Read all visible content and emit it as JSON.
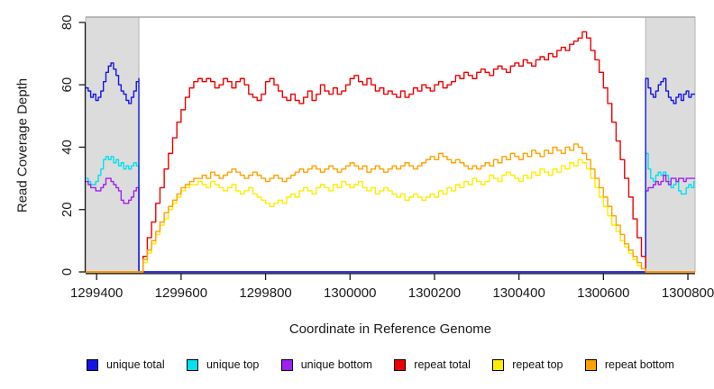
{
  "chart_data": {
    "type": "line",
    "title": "",
    "xlabel": "Coordinate in Reference Genome",
    "ylabel": "Read Coverage Depth",
    "xlim": [
      1299374,
      1300817
    ],
    "ylim": [
      0,
      81.7
    ],
    "x_ticks": [
      1299400,
      1299600,
      1299800,
      1300000,
      1300200,
      1300400,
      1300600,
      1300800
    ],
    "y_ticks": [
      0,
      20,
      40,
      60,
      80
    ],
    "grid": false,
    "legend_position": "bottom",
    "axis_color": "#1a1a1a",
    "plot_border_top_color": "#a6a6a6",
    "shaded_regions": [
      {
        "x0": 1299374,
        "x1": 1299500,
        "fill": "#dcdcdc",
        "stroke": "#b3b3b3"
      },
      {
        "x0": 1300700,
        "x1": 1300817,
        "fill": "#dcdcdc",
        "stroke": "#b3b3b3"
      }
    ],
    "legend": [
      {
        "label": "unique total",
        "color": "#1414e6"
      },
      {
        "label": "unique top",
        "color": "#00e0ee"
      },
      {
        "label": "unique bottom",
        "color": "#a020f0"
      },
      {
        "label": "repeat total",
        "color": "#f00000"
      },
      {
        "label": "repeat top",
        "color": "#ffec00"
      },
      {
        "label": "repeat bottom",
        "color": "#ffa200"
      }
    ],
    "series": [
      {
        "name": "unique-top",
        "legend_label": "unique top",
        "color": "#00e0ee",
        "segments": [
          {
            "x0": 1299374,
            "dx": 6,
            "values": [
              30,
              29,
              28,
              28,
              29,
              31,
              33,
              36,
              37,
              36,
              37,
              35,
              36,
              34,
              35,
              33,
              34,
              33,
              34,
              35,
              34,
              33
            ]
          },
          {
            "x": [
              1299500,
              1300700
            ],
            "values": [
              0,
              0
            ]
          },
          {
            "x0": 1300700,
            "dx": 6,
            "values": [
              38,
              33,
              30,
              29,
              31,
              32,
              31,
              32,
              31,
              29,
              27,
              28,
              29,
              26,
              25,
              25,
              27,
              28,
              27,
              29,
              29
            ]
          }
        ]
      },
      {
        "name": "unique-bottom",
        "legend_label": "unique bottom",
        "color": "#a020f0",
        "segments": [
          {
            "x0": 1299374,
            "dx": 6,
            "values": [
              29,
              28,
              27,
              27,
              26,
              26,
              27,
              28,
              30,
              30,
              29,
              28,
              27,
              26,
              23,
              22,
              22,
              23,
              24,
              26,
              27,
              26
            ]
          },
          {
            "x": [
              1299500,
              1300700
            ],
            "values": [
              0,
              0
            ]
          },
          {
            "x0": 1300700,
            "dx": 6,
            "values": [
              26,
              27,
              27,
              28,
              29,
              28,
              29,
              31,
              29,
              28,
              30,
              30,
              29,
              30,
              30,
              29,
              30,
              30,
              30,
              30,
              30
            ]
          }
        ]
      },
      {
        "name": "unique-total",
        "legend_label": "unique total",
        "color": "#1414e6",
        "segments": [
          {
            "x0": 1299374,
            "dx": 6,
            "values": [
              59,
              58,
              56,
              57,
              55,
              56,
              58,
              61,
              64,
              66,
              67,
              65,
              63,
              60,
              58,
              57,
              55,
              54,
              56,
              58,
              61,
              62
            ]
          },
          {
            "x": [
              1299500,
              1300700
            ],
            "values": [
              0,
              0
            ]
          },
          {
            "x0": 1300700,
            "dx": 6,
            "values": [
              62,
              59,
              57,
              56,
              58,
              60,
              61,
              62,
              58,
              56,
              55,
              54,
              56,
              57,
              55,
              57,
              58,
              56,
              57,
              57,
              57
            ]
          }
        ]
      },
      {
        "name": "repeat-top",
        "legend_label": "repeat top",
        "color": "#ffec00",
        "segments": [
          {
            "x": [
              1299374,
              1299500
            ],
            "values": [
              0,
              0
            ]
          },
          {
            "x0": 1299500,
            "dx": 10,
            "values": [
              0,
              3,
              6,
              9,
              12,
              15,
              17,
              20,
              22,
              24,
              26,
              27,
              28,
              28,
              29,
              28,
              27,
              29,
              28,
              27,
              26,
              27,
              28,
              26,
              25,
              26,
              27,
              25,
              24,
              23,
              22,
              21,
              22,
              23,
              22,
              24,
              25,
              24,
              26,
              27,
              26,
              25,
              27,
              28,
              27,
              26,
              28,
              27,
              29,
              28,
              27,
              28,
              29,
              27,
              26,
              27,
              25,
              26,
              27,
              26,
              25,
              24,
              25,
              23,
              24,
              25,
              24,
              23,
              24,
              25,
              24,
              26,
              25,
              27,
              26,
              28,
              27,
              29,
              28,
              30,
              29,
              28,
              29,
              31,
              30,
              29,
              31,
              32,
              31,
              30,
              29,
              31,
              30,
              32,
              31,
              33,
              32,
              31,
              33,
              32,
              34,
              33,
              35,
              34,
              36,
              35,
              33,
              30,
              27,
              24,
              21,
              18,
              15,
              13,
              10,
              8,
              6,
              4,
              2,
              1,
              0
            ]
          },
          {
            "x": [
              1300700,
              1300817
            ],
            "values": [
              0,
              0
            ]
          }
        ]
      },
      {
        "name": "repeat-total",
        "legend_label": "repeat total",
        "color": "#f00000",
        "segments": [
          {
            "x": [
              1299374,
              1299500
            ],
            "values": [
              0,
              0
            ]
          },
          {
            "x0": 1299500,
            "dx": 10,
            "values": [
              0,
              5,
              11,
              16,
              22,
              27,
              33,
              38,
              43,
              48,
              52,
              56,
              59,
              61,
              62,
              61,
              62,
              61,
              59,
              60,
              62,
              61,
              59,
              61,
              62,
              60,
              57,
              56,
              55,
              57,
              61,
              62,
              60,
              58,
              56,
              55,
              57,
              55,
              54,
              56,
              58,
              55,
              57,
              60,
              58,
              57,
              59,
              57,
              58,
              60,
              62,
              63,
              61,
              60,
              62,
              60,
              58,
              59,
              57,
              58,
              57,
              56,
              58,
              56,
              57,
              59,
              58,
              60,
              59,
              58,
              60,
              61,
              59,
              60,
              61,
              63,
              62,
              64,
              63,
              62,
              64,
              65,
              64,
              63,
              65,
              66,
              65,
              64,
              66,
              67,
              66,
              68,
              67,
              66,
              68,
              69,
              68,
              70,
              69,
              71,
              72,
              71,
              73,
              74,
              75,
              77,
              75,
              71,
              68,
              64,
              59,
              54,
              48,
              42,
              36,
              30,
              24,
              17,
              11,
              5,
              0
            ]
          },
          {
            "x": [
              1300700,
              1300817
            ],
            "values": [
              0,
              0
            ]
          }
        ]
      },
      {
        "name": "repeat-bottom",
        "legend_label": "repeat bottom",
        "color": "#ffa200",
        "segments": [
          {
            "x": [
              1299374,
              1299500
            ],
            "values": [
              0,
              0
            ]
          },
          {
            "x0": 1299500,
            "dx": 10,
            "values": [
              0,
              4,
              7,
              10,
              13,
              16,
              19,
              21,
              23,
              25,
              27,
              28,
              29,
              30,
              30,
              31,
              30,
              32,
              31,
              30,
              31,
              32,
              33,
              32,
              31,
              30,
              31,
              32,
              31,
              30,
              29,
              30,
              31,
              30,
              29,
              30,
              31,
              32,
              33,
              32,
              33,
              34,
              33,
              32,
              33,
              34,
              33,
              32,
              33,
              34,
              35,
              34,
              33,
              34,
              32,
              33,
              34,
              33,
              32,
              33,
              34,
              33,
              34,
              35,
              34,
              33,
              34,
              35,
              36,
              37,
              36,
              38,
              37,
              36,
              35,
              36,
              35,
              34,
              33,
              34,
              33,
              34,
              35,
              34,
              36,
              35,
              37,
              36,
              38,
              37,
              36,
              38,
              37,
              39,
              38,
              37,
              39,
              38,
              40,
              39,
              38,
              40,
              39,
              41,
              40,
              38,
              36,
              33,
              30,
              27,
              24,
              21,
              18,
              15,
              12,
              9,
              7,
              5,
              3,
              1,
              0
            ]
          },
          {
            "x": [
              1300700,
              1300817
            ],
            "values": [
              0,
              0
            ]
          }
        ]
      }
    ]
  }
}
